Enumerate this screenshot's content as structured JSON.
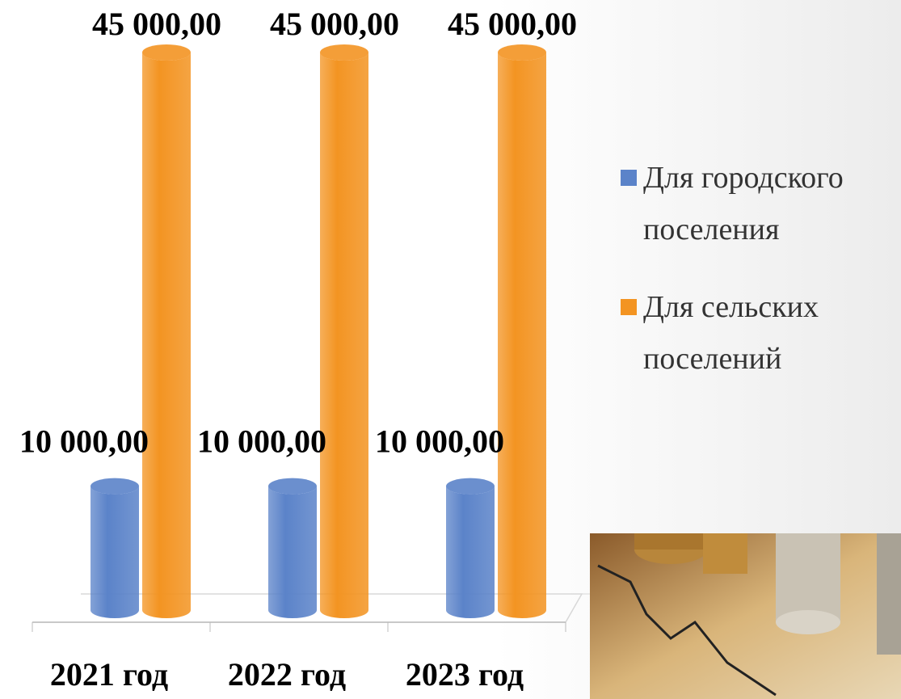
{
  "chart_data": {
    "type": "bar",
    "categories": [
      "2021 год",
      "2022 год",
      "2023 год"
    ],
    "series": [
      {
        "name": "Для городского поселения",
        "color": "#5b83c9",
        "values": [
          10000,
          10000,
          10000
        ],
        "value_labels": [
          "10 000,00",
          "10 000,00",
          "10 000,00"
        ]
      },
      {
        "name": "Для сельских поселений",
        "color": "#f39422",
        "values": [
          45000,
          45000,
          45000
        ],
        "value_labels": [
          "45 000,00",
          "45 000,00",
          "45 000,00"
        ]
      }
    ],
    "legend": "right"
  }
}
